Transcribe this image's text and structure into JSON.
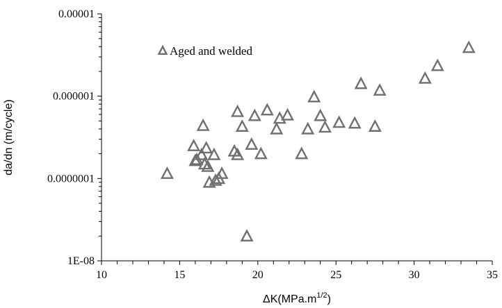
{
  "chart_data": {
    "type": "scatter",
    "xlabel": "ΔK(MPa.m",
    "xlabel_superscript": "1/2",
    "xlabel_suffix": ")",
    "ylabel": "da/dn (m/cycle)",
    "xlim": [
      10,
      35
    ],
    "ylim": [
      1e-08,
      1e-05
    ],
    "yscale": "log",
    "grid": false,
    "legend_placement": "top-left",
    "xticks": [
      10,
      15,
      20,
      25,
      30,
      35
    ],
    "xtick_labels": [
      "10",
      "15",
      "20",
      "25",
      "30",
      "35"
    ],
    "yticks": [
      1e-08,
      1e-07,
      1e-06,
      1e-05
    ],
    "ytick_labels": [
      "1E-08",
      "0.0000001",
      "0.000001",
      "0.00001"
    ],
    "marker_color": "#6f6f6f",
    "series": [
      {
        "name": "Aged and welded",
        "marker": "triangle",
        "points": [
          [
            14.2,
            1.15e-07
          ],
          [
            15.9,
            2.5e-07
          ],
          [
            16.0,
            1.65e-07
          ],
          [
            16.1,
            1.7e-07
          ],
          [
            16.4,
            1.95e-07
          ],
          [
            16.5,
            4.4e-07
          ],
          [
            16.6,
            1.5e-07
          ],
          [
            16.7,
            2.35e-07
          ],
          [
            16.8,
            1.4e-07
          ],
          [
            16.9,
            9e-08
          ],
          [
            17.2,
            1.95e-07
          ],
          [
            17.3,
            9.5e-08
          ],
          [
            17.5,
            1e-07
          ],
          [
            17.7,
            1.15e-07
          ],
          [
            18.5,
            2.15e-07
          ],
          [
            18.7,
            6.5e-07
          ],
          [
            18.7,
            1.95e-07
          ],
          [
            19.0,
            4.3e-07
          ],
          [
            19.3,
            2e-08
          ],
          [
            19.6,
            2.6e-07
          ],
          [
            19.8,
            5.8e-07
          ],
          [
            20.2,
            2e-07
          ],
          [
            20.6,
            6.8e-07
          ],
          [
            21.2,
            4e-07
          ],
          [
            21.4,
            5.4e-07
          ],
          [
            21.9,
            5.9e-07
          ],
          [
            22.8,
            2e-07
          ],
          [
            23.2,
            4e-07
          ],
          [
            23.6,
            9.8e-07
          ],
          [
            24.0,
            5.8e-07
          ],
          [
            24.3,
            4.2e-07
          ],
          [
            25.2,
            4.8e-07
          ],
          [
            26.2,
            4.7e-07
          ],
          [
            26.6,
            1.42e-06
          ],
          [
            27.5,
            4.3e-07
          ],
          [
            27.8,
            1.18e-06
          ],
          [
            30.7,
            1.65e-06
          ],
          [
            31.5,
            2.35e-06
          ],
          [
            33.5,
            3.9e-06
          ]
        ]
      }
    ]
  }
}
